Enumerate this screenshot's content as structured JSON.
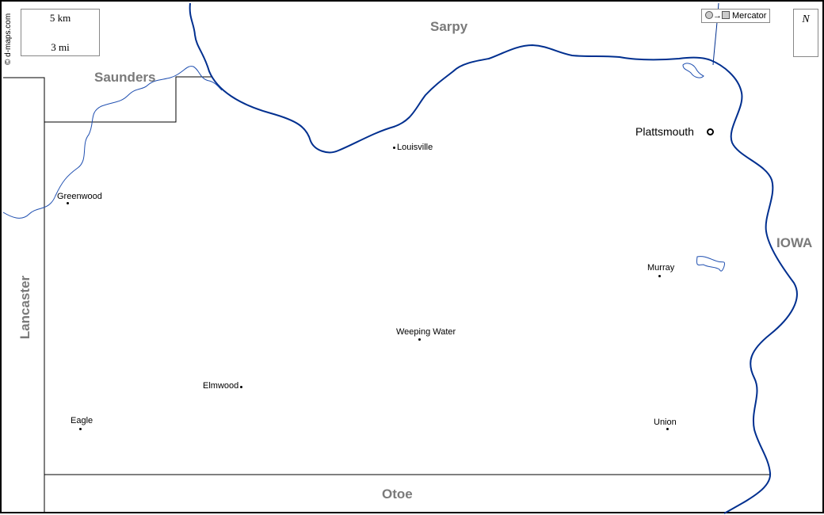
{
  "credit": "© d-maps.com",
  "scale": {
    "km_label": "5 km",
    "mi_label": "3 mi"
  },
  "projection": {
    "label": "Mercator",
    "arrow": "→"
  },
  "north": {
    "label": "N"
  },
  "regions": {
    "sarpy": "Sarpy",
    "saunders": "Saunders",
    "lancaster": "Lancaster",
    "otoe": "Otoe",
    "iowa": "IOWA"
  },
  "county_seat": {
    "name": "Plattsmouth"
  },
  "towns": [
    {
      "name": "Louisville"
    },
    {
      "name": "Greenwood"
    },
    {
      "name": "Murray"
    },
    {
      "name": "Weeping Water"
    },
    {
      "name": "Elmwood"
    },
    {
      "name": "Eagle"
    },
    {
      "name": "Union"
    }
  ],
  "colors": {
    "river": "#002f8f",
    "border": "#000000",
    "region_label": "#7a7a7a"
  }
}
